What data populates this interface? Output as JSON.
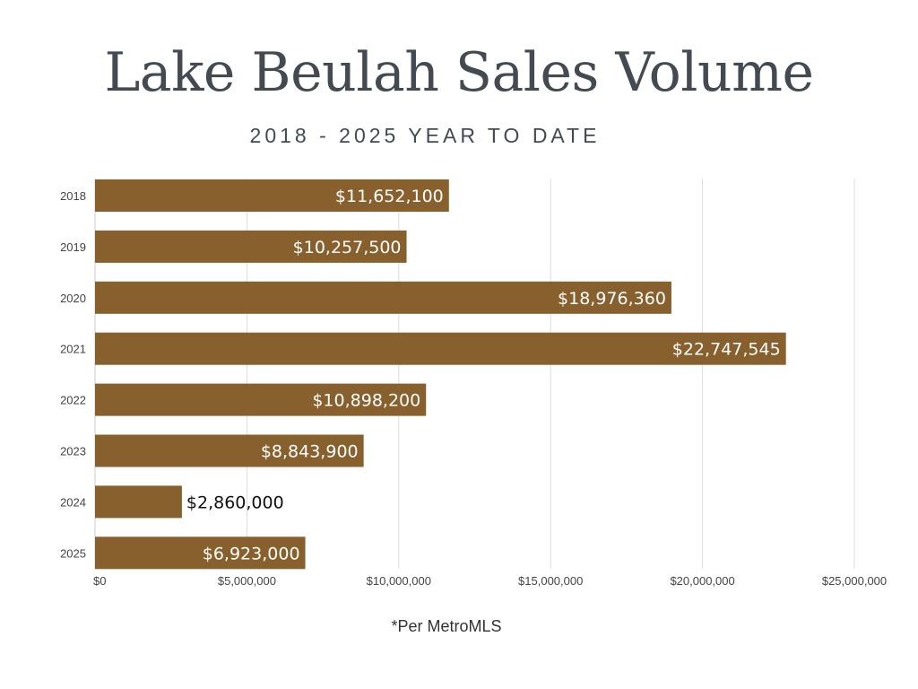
{
  "chart_data": {
    "type": "bar",
    "orientation": "horizontal",
    "title": "Lake Beulah Sales Volume",
    "subtitle": "2018 - 2025 YEAR TO DATE",
    "categories": [
      "2018",
      "2019",
      "2020",
      "2021",
      "2022",
      "2023",
      "2024",
      "2025"
    ],
    "values": [
      11652100,
      10257500,
      18976360,
      22747545,
      10898200,
      8843900,
      2860000,
      6923000
    ],
    "data_labels": [
      "$11,652,100",
      "$10,257,500",
      "$18,976,360",
      "$22,747,545",
      "$10,898,200",
      "$8,843,900",
      "$2,860,000",
      "$6,923,000"
    ],
    "xlim": [
      0,
      25000000
    ],
    "xticks": [
      0,
      5000000,
      10000000,
      15000000,
      20000000,
      25000000
    ],
    "xtick_labels": [
      "$0",
      "$5,000,000",
      "$10,000,000",
      "$15,000,000",
      "$20,000,000",
      "$25,000,000"
    ],
    "xlabel": "",
    "ylabel": "",
    "grid": true,
    "legend": "none",
    "bar_color": "#87602d",
    "label_color_inside": "#ffffff",
    "label_color_outside": "#111111"
  },
  "footnote": "*Per MetroMLS"
}
